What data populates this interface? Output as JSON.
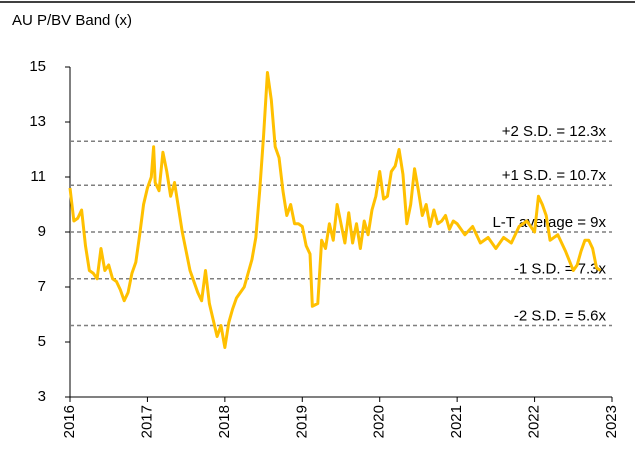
{
  "chart_data": {
    "type": "line",
    "title": "AU P/BV Band (x)",
    "x": [
      2016.0,
      2016.05,
      2016.1,
      2016.15,
      2016.2,
      2016.25,
      2016.3,
      2016.35,
      2016.4,
      2016.45,
      2016.5,
      2016.55,
      2016.6,
      2016.65,
      2016.7,
      2016.75,
      2016.8,
      2016.85,
      2016.9,
      2016.95,
      2017.0,
      2017.05,
      2017.08,
      2017.1,
      2017.15,
      2017.2,
      2017.25,
      2017.3,
      2017.35,
      2017.4,
      2017.45,
      2017.5,
      2017.55,
      2017.6,
      2017.65,
      2017.7,
      2017.75,
      2017.8,
      2017.85,
      2017.9,
      2017.95,
      2018.0,
      2018.05,
      2018.1,
      2018.15,
      2018.2,
      2018.25,
      2018.3,
      2018.35,
      2018.4,
      2018.45,
      2018.5,
      2018.55,
      2018.6,
      2018.65,
      2018.7,
      2018.75,
      2018.8,
      2018.85,
      2018.9,
      2018.95,
      2019.0,
      2019.05,
      2019.1,
      2019.13,
      2019.2,
      2019.25,
      2019.3,
      2019.35,
      2019.4,
      2019.45,
      2019.5,
      2019.55,
      2019.6,
      2019.65,
      2019.7,
      2019.75,
      2019.8,
      2019.85,
      2019.9,
      2019.95,
      2020.0,
      2020.05,
      2020.1,
      2020.15,
      2020.2,
      2020.25,
      2020.3,
      2020.35,
      2020.4,
      2020.45,
      2020.5,
      2020.55,
      2020.6,
      2020.65,
      2020.7,
      2020.75,
      2020.8,
      2020.85,
      2020.9,
      2020.95,
      2021.0,
      2021.1,
      2021.2,
      2021.3,
      2021.4,
      2021.5,
      2021.6,
      2021.7,
      2021.8,
      2021.9,
      2022.0,
      2022.05,
      2022.1,
      2022.15,
      2022.2,
      2022.3,
      2022.4,
      2022.5,
      2022.55,
      2022.6,
      2022.65,
      2022.7,
      2022.75,
      2022.8,
      2022.85
    ],
    "series": [
      {
        "name": "AU P/BV",
        "color": "#ffc000",
        "values": [
          10.6,
          9.4,
          9.5,
          9.8,
          8.5,
          7.6,
          7.5,
          7.3,
          8.4,
          7.6,
          7.8,
          7.3,
          7.2,
          6.9,
          6.5,
          6.8,
          7.5,
          7.9,
          8.9,
          10.0,
          10.6,
          11.0,
          12.1,
          10.8,
          10.5,
          11.9,
          11.2,
          10.3,
          10.8,
          9.9,
          9.0,
          8.3,
          7.6,
          7.2,
          6.8,
          6.5,
          7.6,
          6.4,
          5.8,
          5.2,
          5.6,
          4.8,
          5.7,
          6.2,
          6.6,
          6.8,
          7.0,
          7.5,
          8.0,
          8.8,
          10.5,
          12.5,
          14.8,
          13.8,
          12.1,
          11.7,
          10.5,
          9.6,
          10.0,
          9.3,
          9.3,
          9.2,
          8.5,
          8.2,
          6.3,
          6.4,
          8.7,
          8.4,
          9.3,
          8.7,
          10.0,
          9.3,
          8.6,
          9.7,
          8.6,
          9.3,
          8.4,
          9.4,
          8.9,
          9.8,
          10.3,
          11.2,
          10.2,
          10.3,
          11.2,
          11.4,
          12.0,
          11.1,
          9.3,
          10.0,
          11.3,
          10.5,
          9.6,
          10.0,
          9.2,
          9.8,
          9.3,
          9.4,
          9.6,
          9.1,
          9.4,
          9.3,
          8.9,
          9.2,
          8.6,
          8.8,
          8.4,
          8.8,
          8.6,
          9.2,
          9.4,
          9.0,
          10.3,
          10.0,
          9.6,
          8.7,
          8.9,
          8.3,
          7.6,
          7.8,
          8.3,
          8.7,
          8.7,
          8.4,
          7.7,
          7.6
        ]
      }
    ],
    "reference_lines": [
      {
        "value": 12.3,
        "label": "+2 S.D. = 12.3x"
      },
      {
        "value": 10.7,
        "label": "+1 S.D. = 10.7x"
      },
      {
        "value": 9,
        "label": "L-T average = 9x"
      },
      {
        "value": 7.3,
        "label": "-1 S.D. = 7.3x"
      },
      {
        "value": 5.6,
        "label": "-2 S.D. = 5.6x"
      }
    ],
    "xlim": [
      2016,
      2023
    ],
    "xticks": [
      2016,
      2017,
      2018,
      2019,
      2020,
      2021,
      2022,
      2023
    ],
    "ylim": [
      3,
      15
    ],
    "yticks": [
      3,
      5,
      7,
      9,
      11,
      13,
      15
    ]
  }
}
